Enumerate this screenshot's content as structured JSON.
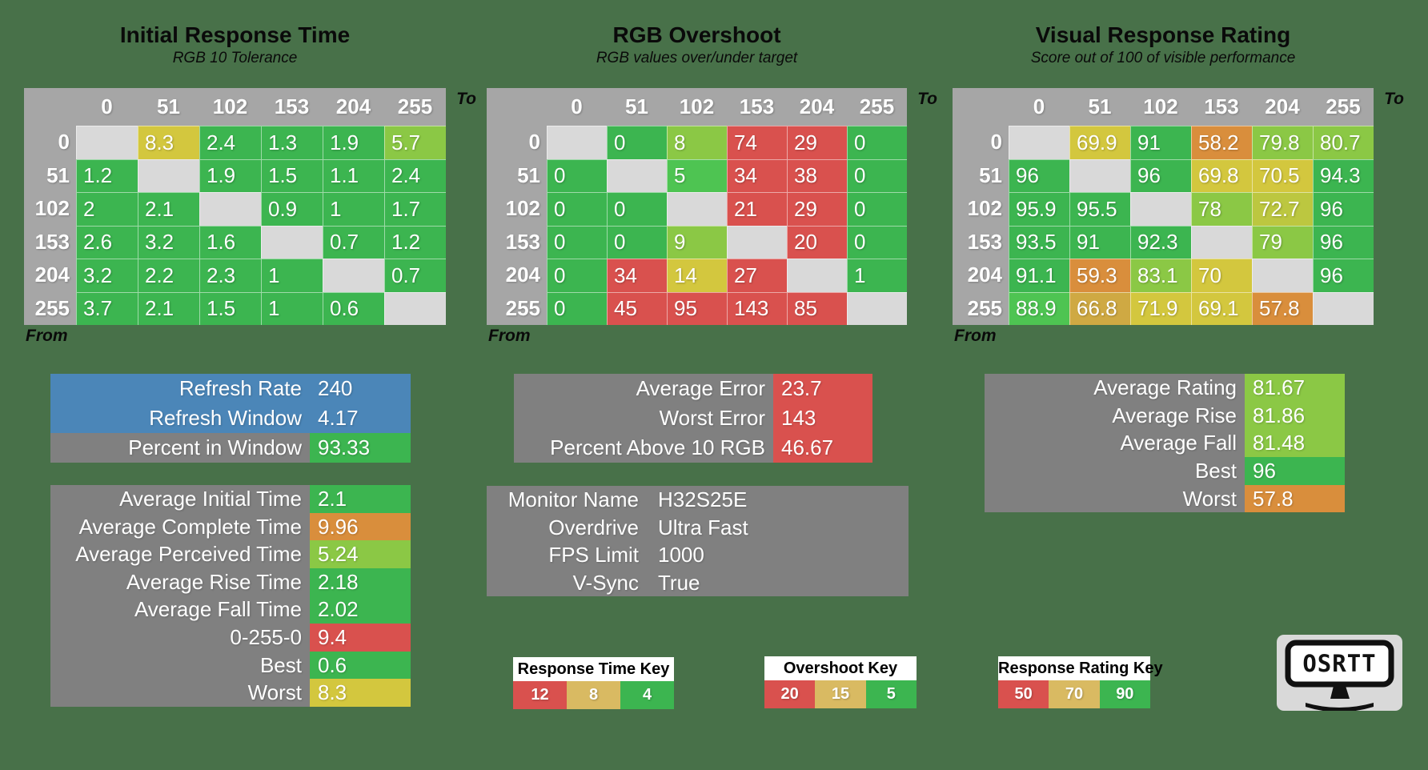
{
  "background": "#487149",
  "palette": {
    "g": "#3cb550",
    "g2": "#4ec452",
    "lg": "#8bc845",
    "yg": "#bcc740",
    "y": "#d3c73e",
    "gold": "#cfa943",
    "o": "#d98e3c",
    "r": "#d9514e",
    "tan": "#d9ba62",
    "blue": "#4b86b8",
    "gray": "#808080",
    "header": "#a6a6a6",
    "diag": "#d9d9d9"
  },
  "chart_data": [
    {
      "type": "heatmap",
      "title": "Initial Response Time",
      "subtitle": "RGB 10 Tolerance",
      "to_label": "To",
      "from_label": "From",
      "x": [
        "0",
        "51",
        "102",
        "153",
        "204",
        "255"
      ],
      "y": [
        "0",
        "51",
        "102",
        "153",
        "204",
        "255"
      ],
      "values": [
        [
          null,
          8.3,
          2.4,
          1.3,
          1.9,
          5.7
        ],
        [
          1.2,
          null,
          1.9,
          1.5,
          1.1,
          2.4
        ],
        [
          2,
          2.1,
          null,
          0.9,
          1,
          1.7
        ],
        [
          2.6,
          3.2,
          1.6,
          null,
          0.7,
          1.2
        ],
        [
          3.2,
          2.2,
          2.3,
          1,
          null,
          0.7
        ],
        [
          3.7,
          2.1,
          1.5,
          1,
          0.6,
          null
        ]
      ],
      "cell_colors": [
        [
          "diag",
          "y",
          "g",
          "g",
          "g",
          "lg"
        ],
        [
          "g",
          "diag",
          "g",
          "g",
          "g",
          "g"
        ],
        [
          "g",
          "g",
          "diag",
          "g",
          "g",
          "g"
        ],
        [
          "g",
          "g",
          "g",
          "diag",
          "g",
          "g"
        ],
        [
          "g",
          "g",
          "g",
          "g",
          "diag",
          "g"
        ],
        [
          "g",
          "g",
          "g",
          "g",
          "g",
          "diag"
        ]
      ]
    },
    {
      "type": "heatmap",
      "title": "RGB Overshoot",
      "subtitle": "RGB values over/under target",
      "to_label": "To",
      "from_label": "From",
      "x": [
        "0",
        "51",
        "102",
        "153",
        "204",
        "255"
      ],
      "y": [
        "0",
        "51",
        "102",
        "153",
        "204",
        "255"
      ],
      "values": [
        [
          null,
          0,
          8,
          74,
          29,
          0
        ],
        [
          0,
          null,
          5,
          34,
          38,
          0
        ],
        [
          0,
          0,
          null,
          21,
          29,
          0
        ],
        [
          0,
          0,
          9,
          null,
          20,
          0
        ],
        [
          0,
          34,
          14,
          27,
          null,
          1
        ],
        [
          0,
          45,
          95,
          143,
          85,
          null
        ]
      ],
      "cell_colors": [
        [
          "diag",
          "g",
          "lg",
          "r",
          "r",
          "g"
        ],
        [
          "g",
          "diag",
          "g2",
          "r",
          "r",
          "g"
        ],
        [
          "g",
          "g",
          "diag",
          "r",
          "r",
          "g"
        ],
        [
          "g",
          "g",
          "lg",
          "diag",
          "r",
          "g"
        ],
        [
          "g",
          "r",
          "y",
          "r",
          "diag",
          "g"
        ],
        [
          "g",
          "r",
          "r",
          "r",
          "r",
          "diag"
        ]
      ]
    },
    {
      "type": "heatmap",
      "title": "Visual Response Rating",
      "subtitle": "Score out of 100 of visible performance",
      "to_label": "To",
      "from_label": "From",
      "x": [
        "0",
        "51",
        "102",
        "153",
        "204",
        "255"
      ],
      "y": [
        "0",
        "51",
        "102",
        "153",
        "204",
        "255"
      ],
      "values": [
        [
          null,
          69.9,
          91,
          58.2,
          79.8,
          80.7
        ],
        [
          96,
          null,
          96,
          69.8,
          70.5,
          94.3
        ],
        [
          95.9,
          95.5,
          null,
          78,
          72.7,
          96
        ],
        [
          93.5,
          91,
          92.3,
          null,
          79,
          96
        ],
        [
          91.1,
          59.3,
          83.1,
          70,
          null,
          96
        ],
        [
          88.9,
          66.8,
          71.9,
          69.1,
          57.8,
          null
        ]
      ],
      "cell_colors": [
        [
          "diag",
          "y",
          "g",
          "o",
          "lg",
          "lg"
        ],
        [
          "g",
          "diag",
          "g",
          "y",
          "y",
          "g"
        ],
        [
          "g",
          "g",
          "diag",
          "lg",
          "yg",
          "g"
        ],
        [
          "g",
          "g",
          "g",
          "diag",
          "lg",
          "g"
        ],
        [
          "g",
          "o",
          "lg",
          "y",
          "diag",
          "g"
        ],
        [
          "g2",
          "gold",
          "y",
          "y",
          "o",
          "diag"
        ]
      ]
    }
  ],
  "panels": {
    "refresh": {
      "rows": [
        {
          "label": "Refresh Rate",
          "value": "240",
          "row_bg": "blue"
        },
        {
          "label": "Refresh Window",
          "value": "4.17",
          "row_bg": "blue"
        },
        {
          "label": "Percent in Window",
          "value": "93.33",
          "value_bg": "g"
        }
      ]
    },
    "times": {
      "rows": [
        {
          "label": "Average Initial Time",
          "value": "2.1",
          "value_bg": "g"
        },
        {
          "label": "Average Complete Time",
          "value": "9.96",
          "value_bg": "o"
        },
        {
          "label": "Average Perceived Time",
          "value": "5.24",
          "value_bg": "lg"
        },
        {
          "label": "Average Rise Time",
          "value": "2.18",
          "value_bg": "g"
        },
        {
          "label": "Average Fall Time",
          "value": "2.02",
          "value_bg": "g"
        },
        {
          "label": "0-255-0",
          "value": "9.4",
          "value_bg": "r"
        },
        {
          "label": "Best",
          "value": "0.6",
          "value_bg": "g"
        },
        {
          "label": "Worst",
          "value": "8.3",
          "value_bg": "y"
        }
      ]
    },
    "error": {
      "rows": [
        {
          "label": "Average Error",
          "value": "23.7",
          "value_bg": "r"
        },
        {
          "label": "Worst Error",
          "value": "143",
          "value_bg": "r"
        },
        {
          "label": "Percent Above 10 RGB",
          "value": "46.67",
          "value_bg": "r"
        }
      ]
    },
    "monitor": {
      "rows": [
        {
          "label": "Monitor Name",
          "value": "H32S25E"
        },
        {
          "label": "Overdrive",
          "value": "Ultra Fast"
        },
        {
          "label": "FPS Limit",
          "value": "1000"
        },
        {
          "label": "V-Sync",
          "value": "True"
        }
      ]
    },
    "rating": {
      "rows": [
        {
          "label": "Average Rating",
          "value": "81.67",
          "value_bg": "lg"
        },
        {
          "label": "Average Rise",
          "value": "81.86",
          "value_bg": "lg"
        },
        {
          "label": "Average Fall",
          "value": "81.48",
          "value_bg": "lg"
        },
        {
          "label": "Best",
          "value": "96",
          "value_bg": "g"
        },
        {
          "label": "Worst",
          "value": "57.8",
          "value_bg": "o"
        }
      ]
    }
  },
  "keys": [
    {
      "title": "Response Time Key",
      "cells": [
        {
          "v": "12",
          "c": "r"
        },
        {
          "v": "8",
          "c": "tan"
        },
        {
          "v": "4",
          "c": "g"
        }
      ]
    },
    {
      "title": "Overshoot Key",
      "cells": [
        {
          "v": "20",
          "c": "r"
        },
        {
          "v": "15",
          "c": "tan"
        },
        {
          "v": "5",
          "c": "g"
        }
      ]
    },
    {
      "title": "Response Rating Key",
      "cells": [
        {
          "v": "50",
          "c": "r"
        },
        {
          "v": "70",
          "c": "tan"
        },
        {
          "v": "90",
          "c": "g"
        }
      ]
    }
  ],
  "logo": {
    "text": "OSRTT"
  }
}
